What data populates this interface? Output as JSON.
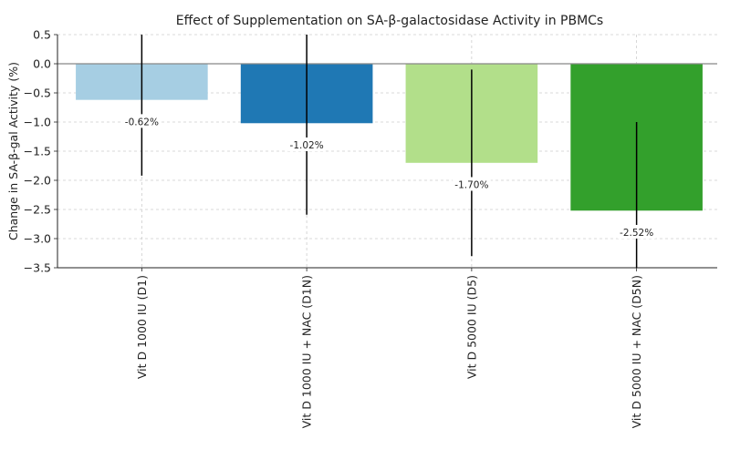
{
  "chart_data": {
    "type": "bar",
    "title": "Effect of Supplementation on SA-β-galactosidase Activity in PBMCs",
    "xlabel": "",
    "ylabel": "Change in SA-β-gal Activity (%)",
    "ylim": [
      -3.5,
      0.5
    ],
    "yticks": [
      0.5,
      0.0,
      -0.5,
      -1.0,
      -1.5,
      -2.0,
      -2.5,
      -3.0,
      -3.5
    ],
    "ytick_labels": [
      "0.5",
      "0.0",
      "−0.5",
      "−1.0",
      "−1.5",
      "−2.0",
      "−2.5",
      "−3.0",
      "−3.5"
    ],
    "grid": true,
    "categories": [
      "Vit D 1000 IU (D1)",
      "Vit D 1000 IU + NAC (D1N)",
      "Vit D 5000 IU (D5)",
      "Vit D 5000 IU + NAC (D5N)"
    ],
    "values": [
      -0.62,
      -1.02,
      -1.7,
      -2.52
    ],
    "errors": [
      1.3,
      1.57,
      1.6,
      1.52
    ],
    "data_labels": [
      "-0.62%",
      "-1.02%",
      "-1.70%",
      "-2.52%"
    ],
    "colors": [
      "#a6cee3",
      "#1f78b4",
      "#b2df8a",
      "#33a02c"
    ]
  }
}
